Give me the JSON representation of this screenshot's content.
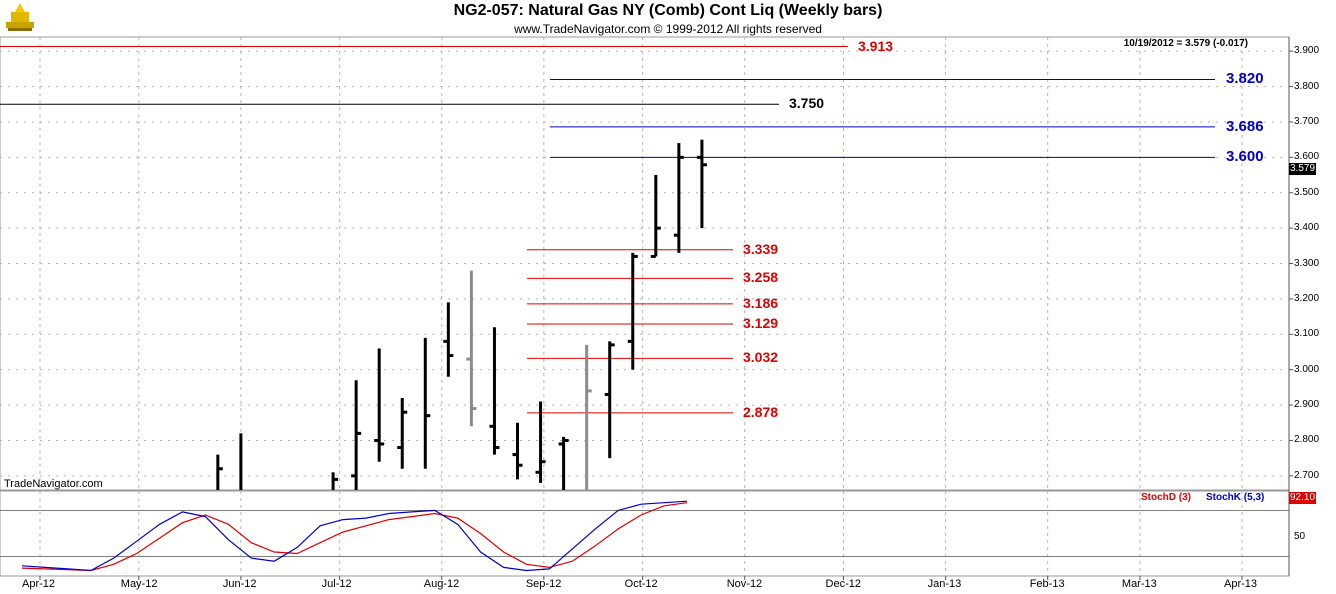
{
  "header": {
    "title": "NG2-057:  Natural Gas NY (Comb) Cont Liq  (Weekly bars)",
    "copyright": "www.TradeNavigator.com © 1999-2012 All rights reserved",
    "last_info": "10/19/2012 = 3.579 (-0.017)",
    "watermark": "TradeNavigator.com",
    "last_price_badge": "3.579",
    "stoch_badge": "92.10"
  },
  "colors": {
    "price_bar": "#000000",
    "gray_bar": "#8c8c8c",
    "red_level": "#e00000",
    "blue_level": "#0000cc",
    "black_level": "#000000",
    "stochD": "#e00000",
    "stochK": "#0000cc",
    "grid": "#b4b4b4"
  },
  "stoch_legend": {
    "d": "StochD (3)",
    "k": "StochK (5,3)"
  },
  "stoch_tick": "50",
  "chart_data": {
    "type": "bar",
    "subtype": "ohlc-weekly",
    "y_range": [
      2.66,
      3.94
    ],
    "y_ticks": [
      "3.900",
      "3.800",
      "3.700",
      "3.600",
      "3.500",
      "3.400",
      "3.300",
      "3.200",
      "3.100",
      "3.000",
      "2.900",
      "2.800",
      "2.700"
    ],
    "x_labels": [
      "Apr-12",
      "May-12",
      "Jun-12",
      "Jul-12",
      "Aug-12",
      "Sep-12",
      "Oct-12",
      "Nov-12",
      "Dec-12",
      "Jan-13",
      "Feb-13",
      "Mar-13",
      "Apr-13"
    ],
    "levels": [
      {
        "value": 3.913,
        "label": "3.913",
        "color": "red"
      },
      {
        "value": 3.82,
        "label": "3.820",
        "color": "blue"
      },
      {
        "value": 3.75,
        "label": "3.750",
        "color": "black"
      },
      {
        "value": 3.686,
        "label": "3.686",
        "color": "blue"
      },
      {
        "value": 3.6,
        "label": "3.600",
        "color": "blue"
      },
      {
        "value": 3.339,
        "label": "3.339",
        "color": "red"
      },
      {
        "value": 3.258,
        "label": "3.258",
        "color": "red"
      },
      {
        "value": 3.186,
        "label": "3.186",
        "color": "red"
      },
      {
        "value": 3.129,
        "label": "3.129",
        "color": "red"
      },
      {
        "value": 3.032,
        "label": "3.032",
        "color": "red"
      },
      {
        "value": 2.878,
        "label": "2.878",
        "color": "red"
      }
    ],
    "bars": [
      {
        "week": "2012-05-25",
        "high": 2.76,
        "low": 2.66,
        "close": 2.72,
        "open": null,
        "color": "black"
      },
      {
        "week": "2012-06-01",
        "high": 2.82,
        "low": 2.66,
        "close": null,
        "open": null,
        "color": "black"
      },
      {
        "week": "2012-06-29",
        "high": 2.71,
        "low": 2.66,
        "close": 2.69,
        "open": null,
        "color": "black"
      },
      {
        "week": "2012-07-06",
        "high": 2.97,
        "low": 2.66,
        "close": 2.82,
        "open": 2.7,
        "color": "black"
      },
      {
        "week": "2012-07-13",
        "high": 3.06,
        "low": 2.74,
        "close": 2.79,
        "open": 2.8,
        "color": "black"
      },
      {
        "week": "2012-07-20",
        "high": 2.92,
        "low": 2.72,
        "close": 2.88,
        "open": 2.78,
        "color": "black"
      },
      {
        "week": "2012-07-27",
        "high": 3.09,
        "low": 2.72,
        "close": 2.87,
        "open": null,
        "color": "black"
      },
      {
        "week": "2012-08-03",
        "high": 3.19,
        "low": 2.98,
        "close": 3.04,
        "open": 3.08,
        "color": "black"
      },
      {
        "week": "2012-08-10",
        "high": 3.28,
        "low": 2.84,
        "close": 2.89,
        "open": 3.03,
        "color": "gray"
      },
      {
        "week": "2012-08-17",
        "high": 3.12,
        "low": 2.76,
        "close": 2.78,
        "open": 2.84,
        "color": "black"
      },
      {
        "week": "2012-08-24",
        "high": 2.85,
        "low": 2.69,
        "close": 2.73,
        "open": 2.76,
        "color": "black"
      },
      {
        "week": "2012-08-31",
        "high": 2.91,
        "low": 2.68,
        "close": 2.74,
        "open": 2.71,
        "color": "black"
      },
      {
        "week": "2012-09-07",
        "high": 2.81,
        "low": 2.66,
        "close": 2.8,
        "open": 2.79,
        "color": "black"
      },
      {
        "week": "2012-09-14",
        "high": 3.07,
        "low": 2.66,
        "close": 2.94,
        "open": null,
        "color": "gray"
      },
      {
        "week": "2012-09-21",
        "high": 3.08,
        "low": 2.75,
        "close": 3.07,
        "open": 2.93,
        "color": "black"
      },
      {
        "week": "2012-09-28",
        "high": 3.33,
        "low": 3.0,
        "close": 3.32,
        "open": 3.08,
        "color": "black"
      },
      {
        "week": "2012-10-05",
        "high": 3.55,
        "low": 3.32,
        "close": 3.4,
        "open": 3.32,
        "color": "black"
      },
      {
        "week": "2012-10-12",
        "high": 3.64,
        "low": 3.33,
        "close": 3.6,
        "open": 3.38,
        "color": "black"
      },
      {
        "week": "2012-10-19",
        "high": 3.65,
        "low": 3.4,
        "close": 3.579,
        "open": 3.6,
        "color": "black"
      }
    ],
    "stoch_range": [
      0,
      100
    ],
    "stochK": [
      8,
      6,
      4,
      2,
      18,
      40,
      62,
      78,
      72,
      42,
      18,
      14,
      32,
      60,
      68,
      70,
      76,
      78,
      80,
      62,
      26,
      6,
      2,
      4,
      30,
      56,
      80,
      88,
      90,
      92
    ],
    "stochD": [
      5,
      4,
      3,
      2,
      10,
      24,
      44,
      64,
      74,
      62,
      38,
      26,
      24,
      38,
      52,
      60,
      68,
      72,
      76,
      70,
      50,
      26,
      10,
      6,
      14,
      34,
      56,
      74,
      86,
      90
    ]
  }
}
